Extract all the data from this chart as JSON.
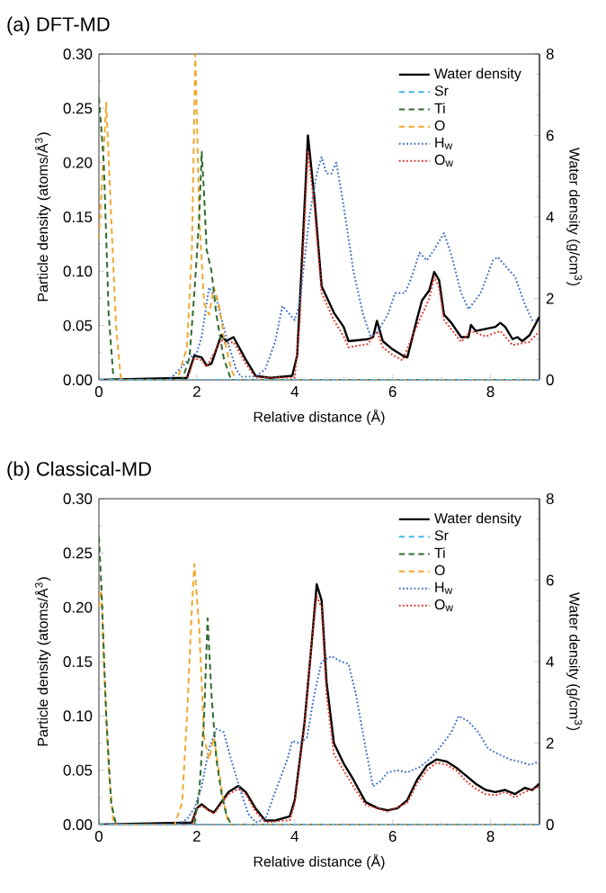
{
  "chart_data": [
    {
      "type": "line",
      "title": "(a) DFT-MD",
      "xlabel": "Relative distance (Å)",
      "ylabel": "Particle density (atoms/Å$^{3}$)",
      "y2label": "Water density (g/cm$^{3}$)",
      "legend": "top right",
      "xlim": [
        0,
        9
      ],
      "xticks": [
        0,
        2,
        4,
        6,
        8
      ],
      "ylim": [
        0,
        0.3
      ],
      "yticks": [
        {
          "value": 0,
          "label": "0.00"
        },
        {
          "value": 0.05,
          "label": "0.05"
        },
        {
          "value": 0.1,
          "label": "0.10"
        },
        {
          "value": 0.15,
          "label": "0.15"
        },
        {
          "value": 0.2,
          "label": "0.20"
        },
        {
          "value": 0.25,
          "label": "0.25"
        },
        {
          "value": 0.3,
          "label": "0.30"
        }
      ],
      "y2lim": [
        0,
        8
      ],
      "y2ticks": [
        0,
        2,
        4,
        6,
        8
      ],
      "series": [
        {
          "name": "Water density",
          "color": "#000000",
          "line_style": "solid",
          "axis": "y2",
          "x": [
            0,
            1.8,
            1.95,
            2.1,
            2.2,
            2.3,
            2.5,
            2.6,
            2.75,
            3.0,
            3.2,
            3.5,
            3.95,
            4.05,
            4.15,
            4.27,
            4.4,
            4.55,
            4.8,
            5.0,
            5.1,
            5.5,
            5.6,
            5.68,
            5.8,
            6.0,
            6.2,
            6.3,
            6.5,
            6.6,
            6.75,
            6.85,
            6.95,
            7.05,
            7.2,
            7.4,
            7.55,
            7.6,
            7.7,
            7.9,
            8.1,
            8.2,
            8.3,
            8.45,
            8.55,
            8.65,
            8.8,
            9.0
          ],
          "values": [
            0,
            0.05,
            0.6,
            0.55,
            0.35,
            0.4,
            1.1,
            0.95,
            1.05,
            0.5,
            0.1,
            0.05,
            0.1,
            0.6,
            3.0,
            6.0,
            4.5,
            2.3,
            1.65,
            1.3,
            0.95,
            1.0,
            1.05,
            1.45,
            0.95,
            0.75,
            0.6,
            0.55,
            1.5,
            1.95,
            2.2,
            2.65,
            2.45,
            1.6,
            1.4,
            1.05,
            1.05,
            1.35,
            1.2,
            1.25,
            1.3,
            1.4,
            1.3,
            1.0,
            1.05,
            0.95,
            1.1,
            1.55
          ]
        },
        {
          "name": "Sr",
          "color": "#4bb8e8",
          "line_style": "dashed",
          "x": [
            0,
            9
          ],
          "values": [
            0,
            0
          ]
        },
        {
          "name": "Ti",
          "color": "#2e6b2e",
          "line_style": "dashed",
          "x": [
            0,
            0.1,
            0.2,
            0.3,
            1.7,
            1.85,
            1.95,
            2.05,
            2.1,
            2.15,
            2.2,
            2.3,
            2.4,
            2.55,
            2.7,
            9
          ],
          "values": [
            0.26,
            0.2,
            0.06,
            0,
            0,
            0.02,
            0.08,
            0.15,
            0.21,
            0.17,
            0.12,
            0.1,
            0.06,
            0.02,
            0,
            0
          ]
        },
        {
          "name": "O",
          "color": "#f0a830",
          "line_style": "dashed",
          "x": [
            0,
            0.15,
            0.25,
            0.35,
            0.45,
            1.6,
            1.8,
            1.9,
            1.97,
            2.05,
            2.15,
            2.25,
            2.35,
            2.45,
            2.55,
            2.7,
            2.8,
            9
          ],
          "values": [
            0.13,
            0.255,
            0.15,
            0.05,
            0,
            0,
            0.03,
            0.12,
            0.3,
            0.15,
            0.07,
            0.06,
            0.085,
            0.07,
            0.04,
            0.01,
            0,
            0
          ]
        },
        {
          "name": "H$_{w}$",
          "color": "#3a6fc4",
          "line_style": "dotted",
          "x": [
            0,
            1.4,
            1.5,
            1.7,
            1.85,
            2.0,
            2.1,
            2.25,
            2.4,
            2.6,
            2.8,
            2.9,
            3.2,
            3.4,
            3.6,
            3.75,
            4.0,
            4.1,
            4.3,
            4.45,
            4.55,
            4.65,
            4.75,
            4.85,
            5.0,
            5.2,
            5.4,
            5.55,
            5.7,
            5.9,
            6.05,
            6.25,
            6.35,
            6.55,
            6.7,
            6.85,
            7.05,
            7.2,
            7.4,
            7.55,
            7.8,
            8.05,
            8.15,
            8.3,
            8.5,
            8.7,
            8.85,
            9.0
          ],
          "values": [
            0,
            0,
            0.003,
            0.012,
            0.02,
            0.025,
            0.04,
            0.085,
            0.075,
            0.04,
            0.01,
            0.003,
            0.003,
            0.01,
            0.035,
            0.068,
            0.055,
            0.07,
            0.15,
            0.19,
            0.205,
            0.19,
            0.19,
            0.2,
            0.16,
            0.1,
            0.06,
            0.04,
            0.045,
            0.06,
            0.08,
            0.08,
            0.09,
            0.117,
            0.11,
            0.12,
            0.135,
            0.115,
            0.08,
            0.065,
            0.08,
            0.11,
            0.113,
            0.105,
            0.095,
            0.07,
            0.055,
            0.055
          ]
        },
        {
          "name": "O$_{w}$",
          "color": "#e03020",
          "line_style": "dotted",
          "x": [
            0,
            1.8,
            1.95,
            2.1,
            2.2,
            2.5,
            2.6,
            2.75,
            3.0,
            3.2,
            4.0,
            4.1,
            4.27,
            4.4,
            4.55,
            4.8,
            5.0,
            5.1,
            5.5,
            5.68,
            5.8,
            6.0,
            6.2,
            6.5,
            6.75,
            6.85,
            6.95,
            7.05,
            7.4,
            7.6,
            7.9,
            8.2,
            8.45,
            8.8,
            9.0
          ],
          "values": [
            0,
            0,
            0.02,
            0.018,
            0.012,
            0.037,
            0.033,
            0.035,
            0.015,
            0.002,
            0.002,
            0.05,
            0.21,
            0.16,
            0.08,
            0.055,
            0.04,
            0.03,
            0.033,
            0.045,
            0.03,
            0.023,
            0.018,
            0.05,
            0.075,
            0.095,
            0.085,
            0.055,
            0.035,
            0.045,
            0.04,
            0.045,
            0.032,
            0.035,
            0.045
          ]
        }
      ]
    },
    {
      "type": "line",
      "title": "(b) Classical-MD",
      "xlabel": "Relative distance (Å)",
      "ylabel": "Particle density (atoms/Å$^{3}$)",
      "y2label": "Water density (g/cm$^{3}$)",
      "legend": "top right",
      "xlim": [
        0,
        9
      ],
      "xticks": [
        0,
        2,
        4,
        6,
        8
      ],
      "ylim": [
        0,
        0.3
      ],
      "yticks": [
        {
          "value": 0,
          "label": "0.00"
        },
        {
          "value": 0.05,
          "label": "0.05"
        },
        {
          "value": 0.1,
          "label": "0.10"
        },
        {
          "value": 0.15,
          "label": "0.15"
        },
        {
          "value": 0.2,
          "label": "0.20"
        },
        {
          "value": 0.25,
          "label": "0.25"
        },
        {
          "value": 0.3,
          "label": "0.30"
        }
      ],
      "y2lim": [
        0,
        8
      ],
      "y2ticks": [
        0,
        2,
        4,
        6,
        8
      ],
      "series": [
        {
          "name": "Water density",
          "color": "#000000",
          "line_style": "solid",
          "axis": "y2",
          "x": [
            0,
            1.9,
            2.0,
            2.1,
            2.25,
            2.35,
            2.5,
            2.65,
            2.85,
            3.0,
            3.2,
            3.4,
            3.6,
            3.9,
            4.0,
            4.2,
            4.35,
            4.45,
            4.55,
            4.65,
            4.8,
            5.0,
            5.2,
            5.45,
            5.7,
            5.9,
            6.1,
            6.3,
            6.5,
            6.7,
            6.9,
            7.1,
            7.3,
            7.5,
            7.7,
            7.9,
            8.1,
            8.3,
            8.5,
            8.7,
            8.85,
            9.0
          ],
          "values": [
            0,
            0.05,
            0.4,
            0.5,
            0.35,
            0.3,
            0.55,
            0.8,
            0.95,
            0.8,
            0.4,
            0.1,
            0.1,
            0.2,
            0.6,
            2.5,
            4.5,
            5.9,
            5.5,
            3.5,
            2.0,
            1.5,
            1.1,
            0.55,
            0.4,
            0.35,
            0.4,
            0.6,
            1.1,
            1.45,
            1.6,
            1.55,
            1.4,
            1.2,
            1.0,
            0.85,
            0.8,
            0.85,
            0.75,
            0.9,
            0.85,
            1.0
          ]
        },
        {
          "name": "Sr",
          "color": "#4bb8e8",
          "line_style": "dashed",
          "x": [
            0,
            9
          ],
          "values": [
            0,
            0
          ]
        },
        {
          "name": "Ti",
          "color": "#2e6b2e",
          "line_style": "dashed",
          "x": [
            0,
            0.05,
            0.15,
            0.25,
            0.35,
            1.95,
            2.05,
            2.15,
            2.22,
            2.3,
            2.4,
            2.5,
            2.6,
            2.7,
            9
          ],
          "values": [
            0.265,
            0.22,
            0.1,
            0.02,
            0,
            0,
            0.03,
            0.1,
            0.19,
            0.12,
            0.06,
            0.03,
            0.01,
            0,
            0
          ]
        },
        {
          "name": "O",
          "color": "#f0a830",
          "line_style": "dashed",
          "x": [
            0,
            0.05,
            0.1,
            0.2,
            0.3,
            1.55,
            1.7,
            1.8,
            1.9,
            1.95,
            2.05,
            2.15,
            2.25,
            2.35,
            2.45,
            2.55,
            2.65,
            9
          ],
          "values": [
            0.2,
            0.22,
            0.15,
            0.05,
            0,
            0,
            0.02,
            0.1,
            0.2,
            0.24,
            0.18,
            0.08,
            0.06,
            0.08,
            0.05,
            0.02,
            0,
            0
          ]
        },
        {
          "name": "H$_{w}$",
          "color": "#3a6fc4",
          "line_style": "dotted",
          "x": [
            0,
            1.6,
            1.8,
            1.95,
            2.1,
            2.25,
            2.4,
            2.55,
            2.7,
            2.9,
            3.05,
            3.2,
            3.4,
            3.6,
            3.85,
            3.95,
            4.1,
            4.25,
            4.4,
            4.55,
            4.75,
            4.95,
            5.1,
            5.25,
            5.45,
            5.6,
            5.75,
            5.9,
            6.1,
            6.3,
            6.55,
            6.75,
            6.95,
            7.2,
            7.35,
            7.55,
            7.75,
            7.95,
            8.15,
            8.4,
            8.6,
            8.8,
            9.0
          ],
          "values": [
            0,
            0,
            0.005,
            0.015,
            0.035,
            0.07,
            0.088,
            0.085,
            0.06,
            0.03,
            0.01,
            0.002,
            0.005,
            0.03,
            0.06,
            0.077,
            0.075,
            0.08,
            0.12,
            0.15,
            0.155,
            0.15,
            0.148,
            0.12,
            0.07,
            0.035,
            0.04,
            0.048,
            0.05,
            0.048,
            0.053,
            0.06,
            0.07,
            0.085,
            0.1,
            0.095,
            0.085,
            0.07,
            0.065,
            0.06,
            0.058,
            0.055,
            0.058
          ]
        },
        {
          "name": "O$_{w}$",
          "color": "#e03020",
          "line_style": "dotted",
          "x": [
            0,
            1.9,
            2.0,
            2.1,
            2.35,
            2.65,
            2.85,
            3.0,
            3.2,
            3.4,
            3.9,
            4.0,
            4.2,
            4.35,
            4.45,
            4.55,
            4.65,
            4.8,
            5.0,
            5.2,
            5.45,
            5.9,
            6.3,
            6.5,
            6.7,
            6.9,
            7.1,
            7.3,
            7.5,
            7.7,
            7.9,
            8.1,
            8.3,
            8.5,
            8.7,
            9.0
          ],
          "values": [
            0,
            0,
            0.015,
            0.017,
            0.01,
            0.028,
            0.033,
            0.028,
            0.012,
            0.002,
            0.004,
            0.02,
            0.09,
            0.17,
            0.21,
            0.2,
            0.12,
            0.065,
            0.05,
            0.035,
            0.018,
            0.012,
            0.02,
            0.038,
            0.05,
            0.057,
            0.055,
            0.05,
            0.04,
            0.033,
            0.028,
            0.027,
            0.03,
            0.025,
            0.03,
            0.035
          ]
        }
      ]
    }
  ]
}
